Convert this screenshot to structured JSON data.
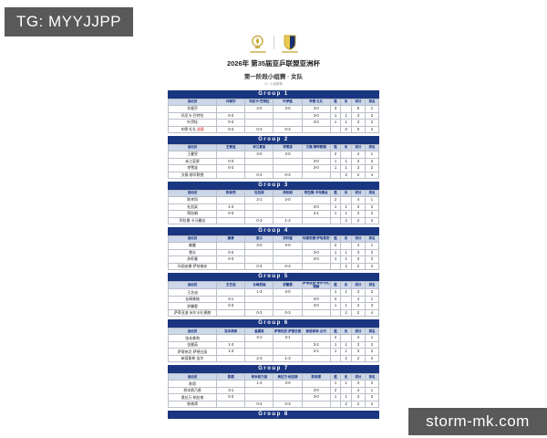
{
  "watermarks": {
    "top_left": "TG: MYYJJPP",
    "bottom_right": "storm-mk.com"
  },
  "header": {
    "title": "2026年 第35届亚乒联盟亚洲杯",
    "subtitle": "第一阶段小组赛 · 女队",
    "caption": "01. 小组赛果",
    "logos": [
      "attu-gold-emblem",
      "asian-cup-shield"
    ]
  },
  "colors": {
    "navy": "#1a3680",
    "header_row_bg": "#ccd7e9",
    "withdraw_red": "#cc2222",
    "watermark_bg": "#595959",
    "gold": "#c6a232"
  },
  "table_columns": {
    "player": "运动员",
    "wins": "胜",
    "losses": "负",
    "points": "得分",
    "rank": "排名"
  },
  "footer_bar": "Group 8",
  "groups": [
    {
      "title": "Group 1",
      "players": [
        "孙颖莎",
        "玛尼卡·巴特拉",
        "叶伊桂",
        "辛德·扎扎"
      ],
      "rows": [
        {
          "name": "孙颖莎",
          "note": "",
          "cells": [
            "",
            "3-0",
            "3-0",
            "3-0"
          ],
          "wins": "3",
          "losses": "",
          "points": "6",
          "rank": "1"
        },
        {
          "name": "玛尼卡·巴特拉",
          "note": "",
          "cells": [
            "0-3",
            "",
            "",
            "3-0"
          ],
          "wins": "1",
          "losses": "1",
          "points": "3",
          "rank": "2"
        },
        {
          "name": "叶伊桂",
          "note": "",
          "cells": [
            "0-3",
            "",
            "",
            "3-0"
          ],
          "wins": "1",
          "losses": "1",
          "points": "3",
          "rank": "2"
        },
        {
          "name": "辛德·扎扎",
          "note": "退赛",
          "cells": [
            "0-3",
            "0-3",
            "0-3",
            ""
          ],
          "wins": "",
          "losses": "0",
          "points": "0",
          "rank": "4"
        }
      ]
    },
    {
      "title": "Group 2",
      "players": [
        "王曼昱",
        "赤江夏星",
        "李雪涟",
        "文薇·穆罕默德"
      ],
      "rows": [
        {
          "name": "王曼昱",
          "note": "",
          "cells": [
            "",
            "3-0",
            "3-0",
            ""
          ],
          "wins": "2",
          "losses": "",
          "points": "4",
          "rank": "1"
        },
        {
          "name": "赤江夏星",
          "note": "",
          "cells": [
            "0-3",
            "",
            "",
            "3-0"
          ],
          "wins": "1",
          "losses": "1",
          "points": "3",
          "rank": "2"
        },
        {
          "name": "李雪涟",
          "note": "",
          "cells": [
            "0-3",
            "",
            "",
            "3-0"
          ],
          "wins": "1",
          "losses": "1",
          "points": "3",
          "rank": "2"
        },
        {
          "name": "文薇·穆罕默德",
          "note": "",
          "cells": [
            "",
            "0-3",
            "0-3",
            ""
          ],
          "wins": "",
          "losses": "2",
          "points": "2",
          "rank": "4"
        }
      ]
    },
    {
      "title": "Group 3",
      "players": [
        "陈幸同",
        "杜凯琹",
        "简彤娟",
        "阿拉雅·卡马曼丝"
      ],
      "rows": [
        {
          "name": "陈幸同",
          "note": "",
          "cells": [
            "",
            "3-1",
            "3-0",
            ""
          ],
          "wins": "2",
          "losses": "",
          "points": "4",
          "rank": "1"
        },
        {
          "name": "杜凯琹",
          "note": "",
          "cells": [
            "1-3",
            "",
            "",
            "3-0"
          ],
          "wins": "1",
          "losses": "1",
          "points": "3",
          "rank": "2"
        },
        {
          "name": "简彤娟",
          "note": "",
          "cells": [
            "0-3",
            "",
            "",
            "3-1"
          ],
          "wins": "1",
          "losses": "1",
          "points": "3",
          "rank": "2"
        },
        {
          "name": "阿拉雅·卡马曼丝",
          "note": "",
          "cells": [
            "",
            "0-3",
            "1-3",
            ""
          ],
          "wins": "",
          "losses": "2",
          "points": "2",
          "rank": "4"
        }
      ]
    },
    {
      "title": "Group 4",
      "players": [
        "蒯曼",
        "曾尖",
        "苏籽童",
        "玛丽安娜·萨哈基安"
      ],
      "rows": [
        {
          "name": "蒯曼",
          "note": "",
          "cells": [
            "",
            "3-0",
            "3-0",
            ""
          ],
          "wins": "2",
          "losses": "",
          "points": "4",
          "rank": "1"
        },
        {
          "name": "曾尖",
          "note": "",
          "cells": [
            "0-3",
            "",
            "",
            "3-0"
          ],
          "wins": "1",
          "losses": "1",
          "points": "3",
          "rank": "2"
        },
        {
          "name": "苏籽童",
          "note": "",
          "cells": [
            "0-3",
            "",
            "",
            "3-0"
          ],
          "wins": "1",
          "losses": "1",
          "points": "3",
          "rank": "2"
        },
        {
          "name": "玛丽安娜·萨哈基安",
          "note": "",
          "cells": [
            "",
            "0-3",
            "0-3",
            ""
          ],
          "wins": "",
          "losses": "2",
          "points": "2",
          "rank": "4"
        }
      ]
    },
    {
      "title": "Group 5",
      "players": [
        "王艺迪",
        "长崎美柚",
        "舒馨雯",
        "萨蒂亚波·米尔卡扎德赫"
      ],
      "rows": [
        {
          "name": "王艺迪",
          "note": "",
          "cells": [
            "",
            "1-3",
            "3-0",
            ""
          ],
          "wins": "1",
          "losses": "1",
          "points": "3",
          "rank": "2"
        },
        {
          "name": "长崎美柚",
          "note": "",
          "cells": [
            "3-1",
            "",
            "",
            "3-0"
          ],
          "wins": "2",
          "losses": "",
          "points": "4",
          "rank": "1"
        },
        {
          "name": "舒馨雯",
          "note": "",
          "cells": [
            "0-3",
            "",
            "",
            "3-0"
          ],
          "wins": "1",
          "losses": "1",
          "points": "3",
          "rank": "3"
        },
        {
          "name": "萨蒂亚波·米尔卡扎德赫",
          "note": "",
          "cells": [
            "",
            "0-3",
            "0-3",
            ""
          ],
          "wins": "",
          "losses": "2",
          "points": "2",
          "rank": "4"
        }
      ]
    },
    {
      "title": "Group 6",
      "players": [
        "张本美和",
        "金娜英",
        "萨蒂热尼·萨德古丽",
        "新塔耶希·女尔"
      ],
      "rows": [
        {
          "name": "张本美和",
          "note": "",
          "cells": [
            "",
            "3-1",
            "3-1",
            ""
          ],
          "wins": "2",
          "losses": "",
          "points": "4",
          "rank": "1"
        },
        {
          "name": "金娜英",
          "note": "",
          "cells": [
            "1-3",
            "",
            "",
            "3-2"
          ],
          "wins": "1",
          "losses": "1",
          "points": "3",
          "rank": "2"
        },
        {
          "name": "萨蒂热尼·萨德古丽",
          "note": "",
          "cells": [
            "1-3",
            "",
            "",
            "3-1"
          ],
          "wins": "1",
          "losses": "1",
          "points": "3",
          "rank": "2"
        },
        {
          "name": "新塔耶希·女尔",
          "note": "",
          "cells": [
            "",
            "2-3",
            "1-3",
            ""
          ],
          "wins": "",
          "losses": "2",
          "points": "2",
          "rank": "4"
        }
      ]
    },
    {
      "title": "Group 7",
      "players": [
        "陈熠",
        "桥本帆乃香",
        "奥拉万·帕拉南",
        "陈晓潭"
      ],
      "rows": [
        {
          "name": "陈熠",
          "note": "",
          "cells": [
            "",
            "1-3",
            "3-0",
            ""
          ],
          "wins": "1",
          "losses": "1",
          "points": "3",
          "rank": "2"
        },
        {
          "name": "桥本帆乃香",
          "note": "",
          "cells": [
            "3-1",
            "",
            "",
            "3-0"
          ],
          "wins": "2",
          "losses": "",
          "points": "4",
          "rank": "1"
        },
        {
          "name": "奥拉万·帕拉南",
          "note": "",
          "cells": [
            "0-3",
            "",
            "",
            "3-0"
          ],
          "wins": "1",
          "losses": "1",
          "points": "3",
          "rank": "3"
        },
        {
          "name": "陈晓潭",
          "note": "",
          "cells": [
            "",
            "0-3",
            "0-3",
            ""
          ],
          "wins": "",
          "losses": "2",
          "points": "2",
          "rank": "4"
        }
      ]
    }
  ]
}
